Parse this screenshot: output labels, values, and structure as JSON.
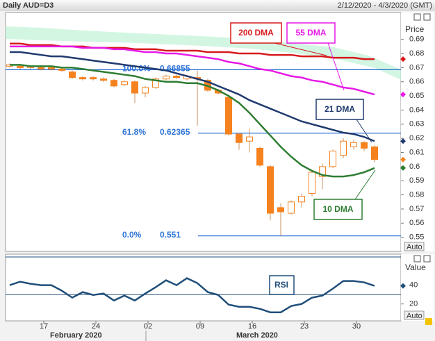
{
  "header": {
    "title": "Daily AUD=D3",
    "range": "2/12/2020 - 4/3/2020 (GMT)"
  },
  "chart_data": [
    {
      "type": "candlestick",
      "y_axis_label": "Price",
      "auto_label": "Auto",
      "categories": [
        null,
        null,
        null,
        "17",
        null,
        null,
        null,
        null,
        "24",
        null,
        null,
        null,
        null,
        "02",
        null,
        null,
        null,
        null,
        "09",
        null,
        null,
        null,
        null,
        "16",
        null,
        null,
        null,
        null,
        "23",
        null,
        null,
        null,
        null,
        "30",
        null,
        null
      ],
      "months": [
        "February 2020",
        "March 2020"
      ],
      "open": [
        0.671,
        0.671,
        0.67,
        0.67,
        0.67,
        0.669,
        0.667,
        0.663,
        0.663,
        0.662,
        0.661,
        0.658,
        0.66,
        0.652,
        0.656,
        0.662,
        0.664,
        0.662,
        0.663,
        0.661,
        0.654,
        0.649,
        0.623,
        0.618,
        0.613,
        0.6,
        0.571,
        0.567,
        0.575,
        0.581,
        0.593,
        0.6,
        0.608,
        0.614,
        0.617,
        0.614
      ],
      "high": [
        0.673,
        0.672,
        0.672,
        0.671,
        0.671,
        0.67,
        0.668,
        0.664,
        0.664,
        0.663,
        0.662,
        0.661,
        0.661,
        0.657,
        0.663,
        0.665,
        0.665,
        0.665,
        0.668,
        0.662,
        0.655,
        0.65,
        0.624,
        0.627,
        0.614,
        0.601,
        0.574,
        0.576,
        0.581,
        0.597,
        0.602,
        0.612,
        0.62,
        0.619,
        0.618,
        0.615
      ],
      "low": [
        0.67,
        0.669,
        0.669,
        0.668,
        0.668,
        0.667,
        0.662,
        0.661,
        0.661,
        0.66,
        0.656,
        0.657,
        0.645,
        0.649,
        0.655,
        0.661,
        0.662,
        0.661,
        0.629,
        0.653,
        0.651,
        0.622,
        0.612,
        0.61,
        0.6,
        0.562,
        0.551,
        0.566,
        0.571,
        0.579,
        0.584,
        0.599,
        0.606,
        0.612,
        0.611,
        0.603
      ],
      "close": [
        0.672,
        0.67,
        0.671,
        0.669,
        0.669,
        0.668,
        0.663,
        0.662,
        0.662,
        0.661,
        0.657,
        0.66,
        0.652,
        0.656,
        0.662,
        0.664,
        0.663,
        0.664,
        0.662,
        0.654,
        0.652,
        0.623,
        0.617,
        0.621,
        0.601,
        0.567,
        0.568,
        0.575,
        0.579,
        0.596,
        0.6,
        0.611,
        0.618,
        0.617,
        0.613,
        0.605
      ],
      "candle_color": "#f5821f",
      "series": [
        {
          "name": "200 DMA",
          "color": "#d7191c",
          "values": [
            0.687,
            0.687,
            0.686,
            0.686,
            0.686,
            0.685,
            0.685,
            0.685,
            0.684,
            0.684,
            0.684,
            0.684,
            0.683,
            0.683,
            0.683,
            0.682,
            0.682,
            0.682,
            0.682,
            0.681,
            0.681,
            0.681,
            0.68,
            0.68,
            0.68,
            0.679,
            0.679,
            0.679,
            0.678,
            0.678,
            0.678,
            0.677,
            0.677,
            0.677,
            0.676,
            0.676
          ]
        },
        {
          "name": "55 DMA",
          "color": "#e619e6",
          "values": [
            0.685,
            0.685,
            0.685,
            0.685,
            0.685,
            0.685,
            0.685,
            0.684,
            0.684,
            0.684,
            0.683,
            0.683,
            0.682,
            0.681,
            0.681,
            0.68,
            0.68,
            0.679,
            0.678,
            0.677,
            0.676,
            0.674,
            0.673,
            0.671,
            0.669,
            0.668,
            0.666,
            0.664,
            0.663,
            0.661,
            0.66,
            0.658,
            0.656,
            0.655,
            0.653,
            0.651
          ]
        },
        {
          "name": "21 DMA",
          "color": "#1f3a6e",
          "values": [
            0.681,
            0.681,
            0.68,
            0.679,
            0.678,
            0.678,
            0.677,
            0.676,
            0.675,
            0.674,
            0.673,
            0.672,
            0.671,
            0.67,
            0.669,
            0.668,
            0.666,
            0.664,
            0.662,
            0.66,
            0.657,
            0.654,
            0.651,
            0.647,
            0.644,
            0.641,
            0.638,
            0.635,
            0.632,
            0.63,
            0.628,
            0.626,
            0.624,
            0.623,
            0.621,
            0.618
          ]
        },
        {
          "name": "10 DMA",
          "color": "#2e7d32",
          "values": [
            0.672,
            0.672,
            0.671,
            0.671,
            0.671,
            0.67,
            0.67,
            0.669,
            0.668,
            0.667,
            0.666,
            0.665,
            0.664,
            0.662,
            0.661,
            0.66,
            0.66,
            0.659,
            0.659,
            0.657,
            0.654,
            0.65,
            0.645,
            0.638,
            0.63,
            0.622,
            0.614,
            0.607,
            0.601,
            0.597,
            0.594,
            0.593,
            0.593,
            0.594,
            0.596,
            0.599
          ]
        }
      ],
      "fib_levels": [
        {
          "label": "100.0%",
          "value": 0.66855
        },
        {
          "label": "61.8%",
          "value": 0.62365
        },
        {
          "label": "0.0%",
          "value": 0.551
        }
      ],
      "fib_color": "#2f75d6",
      "ylim": [
        0.54,
        0.709
      ],
      "yticks": [
        0.55,
        0.56,
        0.57,
        0.58,
        0.59,
        0.6,
        0.61,
        0.62,
        0.63,
        0.64,
        0.65,
        0.66,
        0.67,
        0.68,
        0.69
      ]
    },
    {
      "type": "line",
      "y_axis_label": "Value",
      "auto_label": "Auto",
      "series": [
        {
          "name": "RSI",
          "color": "#1f4e79",
          "values": [
            40,
            43.7,
            41.5,
            40,
            40,
            34.1,
            26.7,
            32.6,
            29.6,
            31.1,
            23.7,
            28.9,
            23.7,
            31.1,
            37.8,
            45.2,
            40,
            47.4,
            42.2,
            32.6,
            29.6,
            19.3,
            17,
            17,
            14.8,
            11.1,
            11.1,
            17.8,
            20,
            26.7,
            28.9,
            36.3,
            44.4,
            44.4,
            43,
            39.3
          ]
        }
      ],
      "reference_lines": [
        30,
        70
      ],
      "ylim": [
        2,
        73
      ],
      "yticks": [
        20,
        40
      ]
    }
  ]
}
